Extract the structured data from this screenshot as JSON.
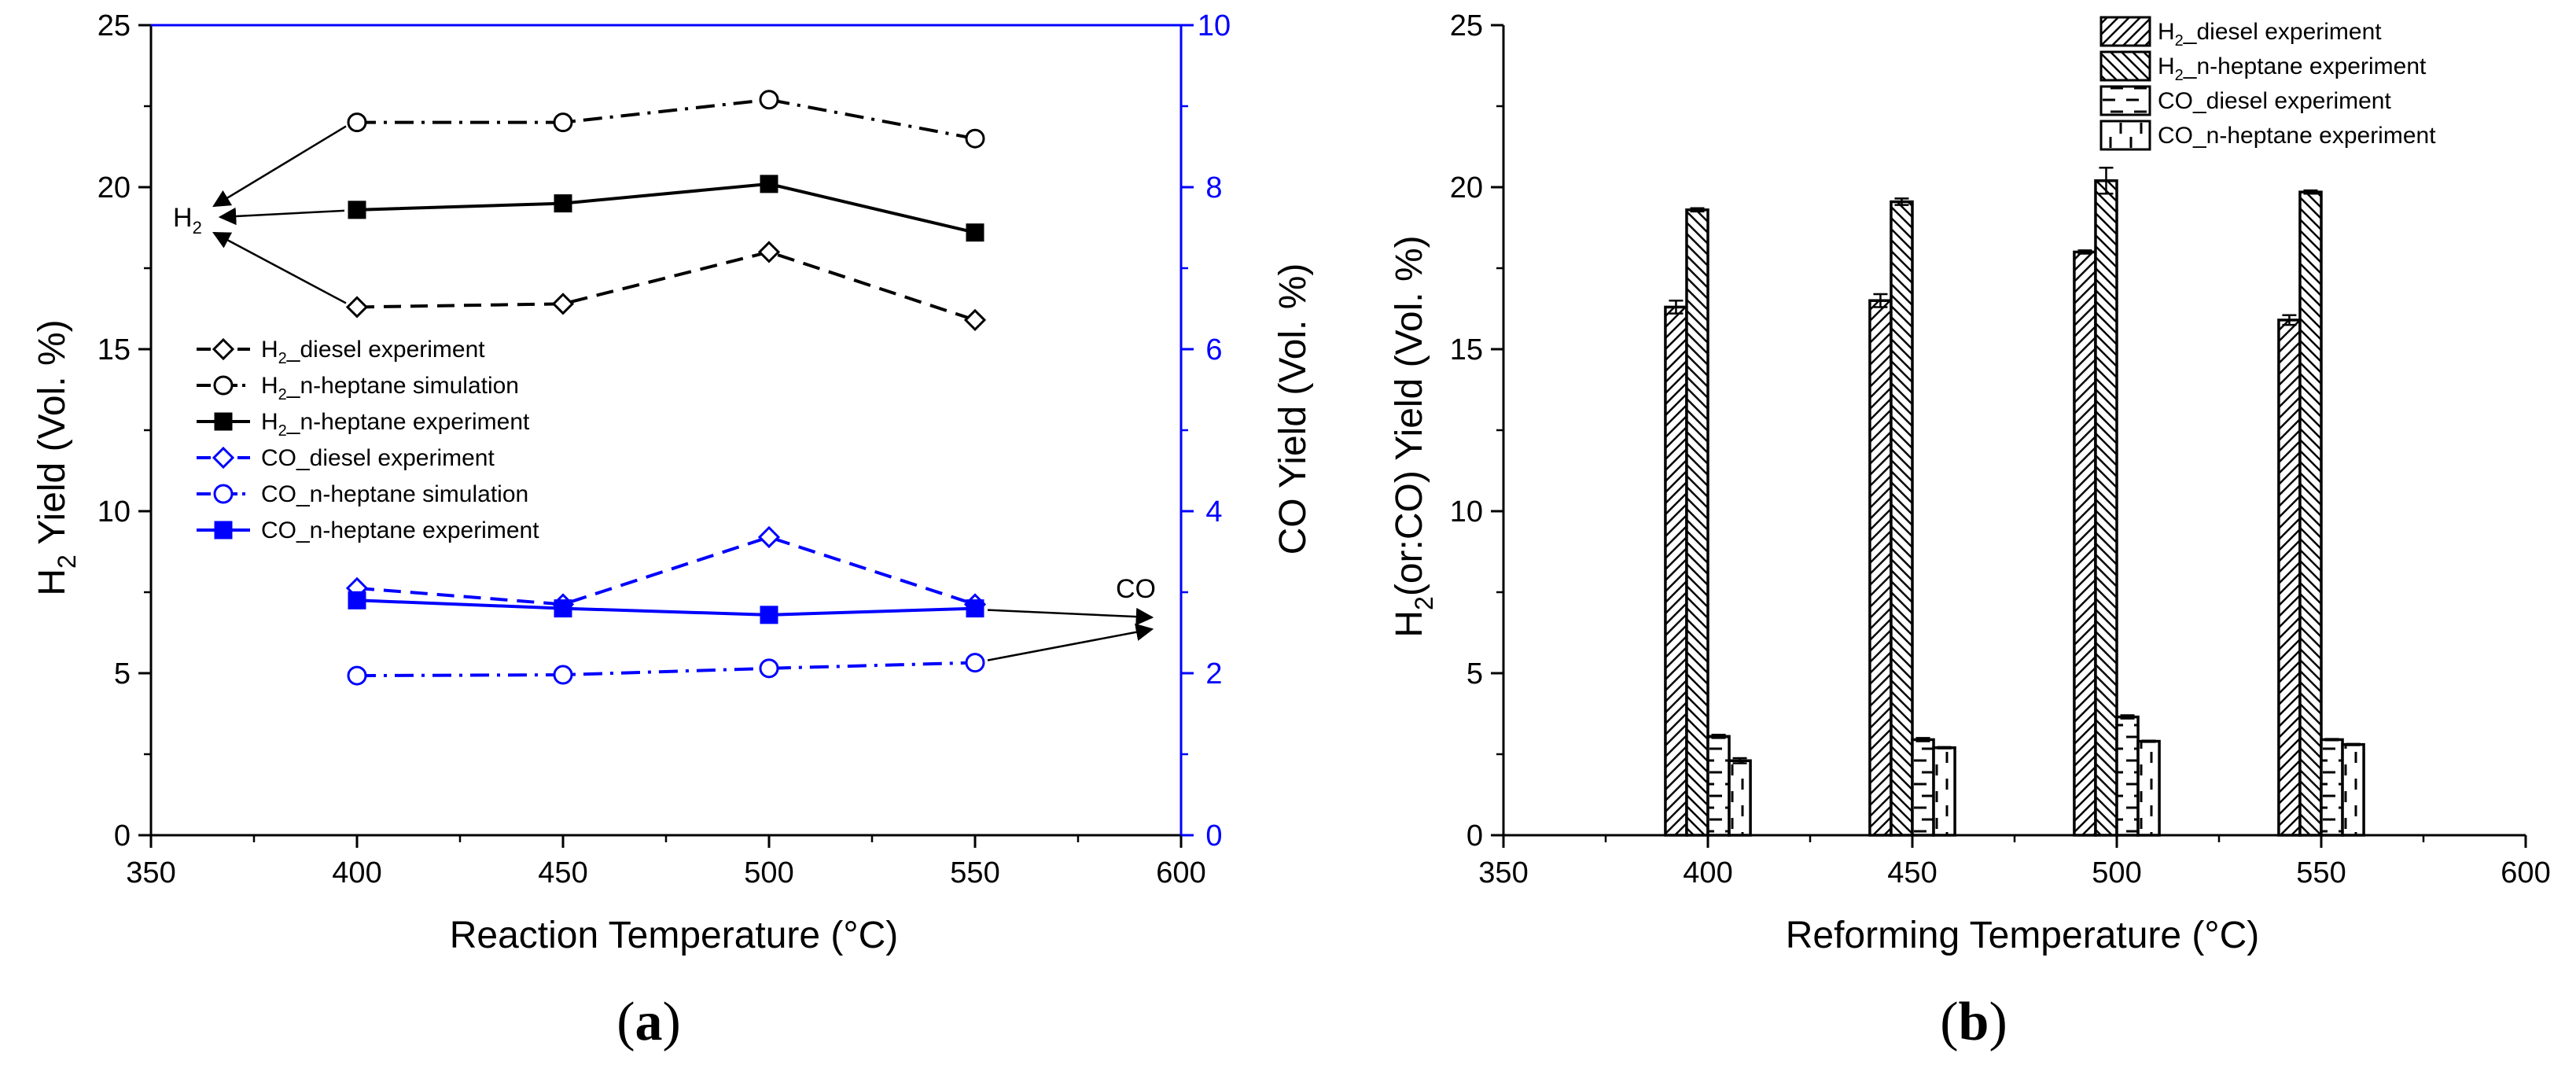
{
  "colors": {
    "black": "#000000",
    "blue": "#0000ff"
  },
  "chart_data": [
    {
      "type": "line",
      "panel_label": "(a)",
      "panel_label_letter": "a",
      "xlabel": "Reaction Temperature (°C)",
      "ylabel_left_main": "H",
      "ylabel_left_sub": "2",
      "ylabel_left_rest": " Yield (Vol. %)",
      "ylabel_right": "CO Yield (Vol. %)",
      "xlim": [
        350,
        600
      ],
      "ylim_left": [
        0,
        25
      ],
      "ylim_right": [
        0,
        10
      ],
      "xticks": [
        "350",
        "400",
        "450",
        "500",
        "550",
        "600"
      ],
      "yticks_left": [
        "0",
        "5",
        "10",
        "15",
        "20",
        "25"
      ],
      "yticks_right": [
        "0",
        "2",
        "4",
        "6",
        "8",
        "10"
      ],
      "annotations": {
        "h2_main": "H",
        "h2_sub": "2",
        "co": "CO"
      },
      "x": [
        400,
        450,
        500,
        550
      ],
      "series": [
        {
          "name": "H2_diesel experiment",
          "name_main": "H",
          "name_sub": "2",
          "name_rest": "_diesel experiment",
          "axis": "left",
          "color": "#000000",
          "marker": "open-diamond",
          "dash": "dash",
          "values": [
            16.3,
            16.4,
            18.0,
            15.9
          ]
        },
        {
          "name": "H2_n-heptane simulation",
          "name_main": "H",
          "name_sub": "2",
          "name_rest": "_n-heptane simulation",
          "axis": "left",
          "color": "#000000",
          "marker": "open-circle",
          "dash": "dashdot",
          "values": [
            22.0,
            22.0,
            22.7,
            21.5
          ]
        },
        {
          "name": "H2_n-heptane experiment",
          "name_main": "H",
          "name_sub": "2",
          "name_rest": "_n-heptane experiment",
          "axis": "left",
          "color": "#000000",
          "marker": "filled-square",
          "dash": "solid",
          "values": [
            19.3,
            19.5,
            20.1,
            18.6
          ]
        },
        {
          "name": "CO_diesel experiment",
          "name_main": "CO_diesel experiment",
          "name_sub": "",
          "name_rest": "",
          "axis": "right",
          "color": "#0000ff",
          "marker": "open-diamond",
          "dash": "dash",
          "values": [
            3.05,
            2.85,
            3.68,
            2.85
          ]
        },
        {
          "name": "CO_n-heptane simulation",
          "name_main": "CO_n-heptane simulation",
          "name_sub": "",
          "name_rest": "",
          "axis": "right",
          "color": "#0000ff",
          "marker": "open-circle",
          "dash": "dashdot",
          "values": [
            1.97,
            1.98,
            2.06,
            2.13
          ]
        },
        {
          "name": "CO_n-heptane experiment",
          "name_main": "CO_n-heptane experiment",
          "name_sub": "",
          "name_rest": "",
          "axis": "right",
          "color": "#0000ff",
          "marker": "filled-square",
          "dash": "solid",
          "values": [
            2.9,
            2.8,
            2.72,
            2.8
          ]
        }
      ]
    },
    {
      "type": "bar",
      "panel_label": "(b)",
      "panel_label_letter": "b",
      "xlabel": "Reforming Temperature (°C)",
      "ylabel_main": "H",
      "ylabel_sub": "2",
      "ylabel_rest": "(or:CO) Yield (Vol. %)",
      "xlim": [
        350,
        600
      ],
      "ylim": [
        0,
        25
      ],
      "xticks": [
        "350",
        "400",
        "450",
        "500",
        "550",
        "600"
      ],
      "yticks": [
        "0",
        "5",
        "10",
        "15",
        "20",
        "25"
      ],
      "categories": [
        400,
        450,
        500,
        550
      ],
      "series": [
        {
          "name": "H2_diesel experiment",
          "name_main": "H",
          "name_sub": "2",
          "name_rest": "_diesel experiment",
          "pattern": "diag-fwd",
          "values": [
            16.3,
            16.5,
            18.0,
            15.9
          ],
          "errors": [
            0.2,
            0.2,
            0.05,
            0.15
          ]
        },
        {
          "name": "H2_n-heptane experiment",
          "name_main": "H",
          "name_sub": "2",
          "name_rest": "_n-heptane experiment",
          "pattern": "diag-back",
          "values": [
            19.3,
            19.55,
            20.2,
            19.85
          ],
          "errors": [
            0.05,
            0.1,
            0.4,
            0.05
          ]
        },
        {
          "name": "CO_diesel experiment",
          "name_main": "CO_diesel experiment",
          "name_sub": "",
          "name_rest": "",
          "pattern": "hdash",
          "values": [
            3.05,
            2.95,
            3.65,
            2.95
          ],
          "errors": [
            0.05,
            0.05,
            0.05,
            0.02
          ]
        },
        {
          "name": "CO_n-heptane experiment",
          "name_main": "CO_n-heptane experiment",
          "name_sub": "",
          "name_rest": "",
          "pattern": "vdash",
          "values": [
            2.3,
            2.7,
            2.9,
            2.8
          ],
          "errors": [
            0.08,
            0.02,
            0.02,
            0.02
          ]
        }
      ]
    }
  ]
}
